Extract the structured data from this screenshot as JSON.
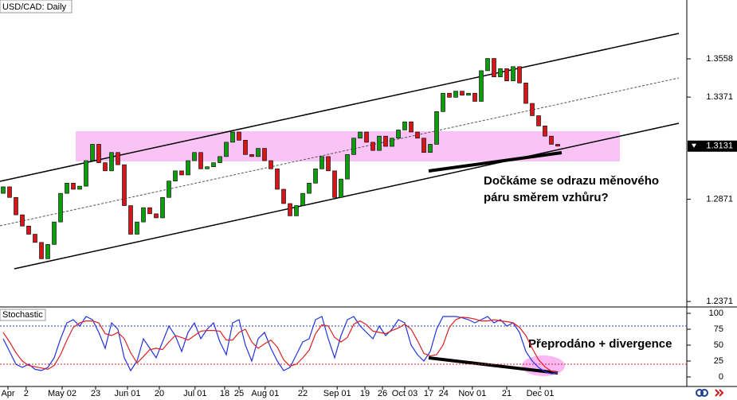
{
  "chart_data": [
    {
      "type": "candlestick",
      "title": "USD/CAD: Daily",
      "open": [
        1.29,
        1.2932,
        1.288,
        1.2795,
        1.274,
        1.27,
        1.266,
        1.258,
        1.265,
        1.276,
        1.29,
        1.295,
        1.292,
        1.2935,
        1.306,
        1.314,
        1.305,
        1.301,
        1.31,
        1.304,
        1.284,
        1.27,
        1.276,
        1.283,
        1.28,
        1.278,
        1.288,
        1.296,
        1.301,
        1.299,
        1.306,
        1.31,
        1.302,
        1.303,
        1.305,
        1.308,
        1.315,
        1.32,
        1.316,
        1.309,
        1.308,
        1.312,
        1.306,
        1.302,
        1.292,
        1.285,
        1.279,
        1.284,
        1.29,
        1.295,
        1.302,
        1.308,
        1.301,
        1.288,
        1.297,
        1.309,
        1.317,
        1.32,
        1.315,
        1.311,
        1.318,
        1.313,
        1.317,
        1.321,
        1.325,
        1.32,
        1.317,
        1.31,
        1.314,
        1.33,
        1.339,
        1.337,
        1.34,
        1.338,
        1.339,
        1.335,
        1.35,
        1.356,
        1.347,
        1.351,
        1.345,
        1.352,
        1.344,
        1.334,
        1.328,
        1.323,
        1.318,
        1.314
      ],
      "close": [
        1.2932,
        1.288,
        1.2795,
        1.274,
        1.27,
        1.266,
        1.258,
        1.265,
        1.276,
        1.29,
        1.295,
        1.292,
        1.2935,
        1.306,
        1.314,
        1.305,
        1.301,
        1.31,
        1.304,
        1.284,
        1.27,
        1.276,
        1.283,
        1.28,
        1.278,
        1.288,
        1.296,
        1.301,
        1.299,
        1.306,
        1.31,
        1.302,
        1.303,
        1.305,
        1.308,
        1.315,
        1.32,
        1.316,
        1.309,
        1.308,
        1.312,
        1.306,
        1.302,
        1.292,
        1.285,
        1.279,
        1.284,
        1.29,
        1.295,
        1.302,
        1.308,
        1.301,
        1.288,
        1.297,
        1.309,
        1.317,
        1.32,
        1.315,
        1.311,
        1.318,
        1.313,
        1.317,
        1.321,
        1.325,
        1.32,
        1.317,
        1.31,
        1.314,
        1.33,
        1.339,
        1.337,
        1.34,
        1.338,
        1.339,
        1.335,
        1.35,
        1.356,
        1.347,
        1.351,
        1.345,
        1.352,
        1.344,
        1.334,
        1.328,
        1.323,
        1.318,
        1.314,
        1.3131
      ],
      "up_color": "#109a10",
      "down_color": "#d01818",
      "xlim": [
        -0.5,
        107.25
      ],
      "ylim": [
        1.2348,
        1.3846
      ],
      "yticks": [
        1.3558,
        1.3371,
        1.2871,
        1.2371
      ],
      "last_price": 1.3131,
      "xticks": [
        {
          "value": 0.75,
          "label": "Apr"
        },
        {
          "value": 3.6,
          "label": "2"
        },
        {
          "value": 9.25,
          "label": "May 02"
        },
        {
          "value": 14.5,
          "label": "23"
        },
        {
          "value": 19.5,
          "label": "Jun 01"
        },
        {
          "value": 24.5,
          "label": "20"
        },
        {
          "value": 30.1,
          "label": "Jul 01"
        },
        {
          "value": 34.75,
          "label": "18"
        },
        {
          "value": 37,
          "label": "25"
        },
        {
          "value": 41.1,
          "label": "Aug 01"
        },
        {
          "value": 47,
          "label": "22"
        },
        {
          "value": 52.4,
          "label": "Sep 01"
        },
        {
          "value": 56.75,
          "label": "19"
        },
        {
          "value": 59.5,
          "label": "26"
        },
        {
          "value": 63,
          "label": "Oct 03"
        },
        {
          "value": 66.75,
          "label": "17"
        },
        {
          "value": 69.1,
          "label": "24"
        },
        {
          "value": 73.6,
          "label": "Nov 01"
        },
        {
          "value": 79,
          "label": "21"
        },
        {
          "value": 84.25,
          "label": "Dec 01"
        }
      ],
      "annotation": [
        "Dočkáme se odrazu měnového",
        "páru směrem vzhůru?"
      ]
    },
    {
      "type": "line",
      "title": "Stochastic",
      "series": [
        {
          "color": "#2233dd",
          "values": [
            60,
            40,
            20,
            15,
            20,
            12,
            10,
            15,
            30,
            60,
            85,
            90,
            80,
            95,
            90,
            70,
            45,
            85,
            75,
            30,
            10,
            25,
            60,
            45,
            30,
            55,
            80,
            65,
            40,
            70,
            85,
            60,
            75,
            85,
            55,
            35,
            85,
            90,
            50,
            25,
            60,
            70,
            45,
            25,
            10,
            15,
            35,
            55,
            60,
            90,
            95,
            60,
            30,
            65,
            90,
            95,
            80,
            70,
            60,
            80,
            65,
            75,
            90,
            85,
            50,
            35,
            25,
            40,
            75,
            95,
            95,
            95,
            93,
            90,
            85,
            90,
            95,
            85,
            90,
            80,
            85,
            70,
            40,
            25,
            15,
            8,
            5,
            6
          ]
        },
        {
          "color": "#e02020",
          "values": [
            70,
            55,
            38,
            25,
            18,
            16,
            14,
            12,
            18,
            35,
            58,
            78,
            85,
            88,
            88,
            85,
            68,
            65,
            70,
            60,
            38,
            22,
            32,
            43,
            45,
            43,
            55,
            65,
            62,
            58,
            65,
            72,
            73,
            73,
            72,
            58,
            58,
            70,
            75,
            55,
            45,
            52,
            58,
            47,
            27,
            17,
            20,
            30,
            42,
            68,
            82,
            80,
            62,
            55,
            62,
            83,
            88,
            82,
            72,
            70,
            68,
            73,
            77,
            83,
            75,
            57,
            37,
            33,
            35,
            50,
            78,
            90,
            94,
            93,
            91,
            88,
            88,
            90,
            88,
            87,
            85,
            78,
            65,
            45,
            27,
            16,
            9,
            7
          ]
        }
      ],
      "levels": [
        {
          "value": 80,
          "color": "#3344cc"
        },
        {
          "value": 20,
          "color": "#dd2222"
        }
      ],
      "ylim": [
        -10,
        107.5
      ],
      "yticks": [
        100,
        75,
        50,
        25,
        0
      ],
      "annotation": "Přeprodáno + divergence"
    }
  ]
}
